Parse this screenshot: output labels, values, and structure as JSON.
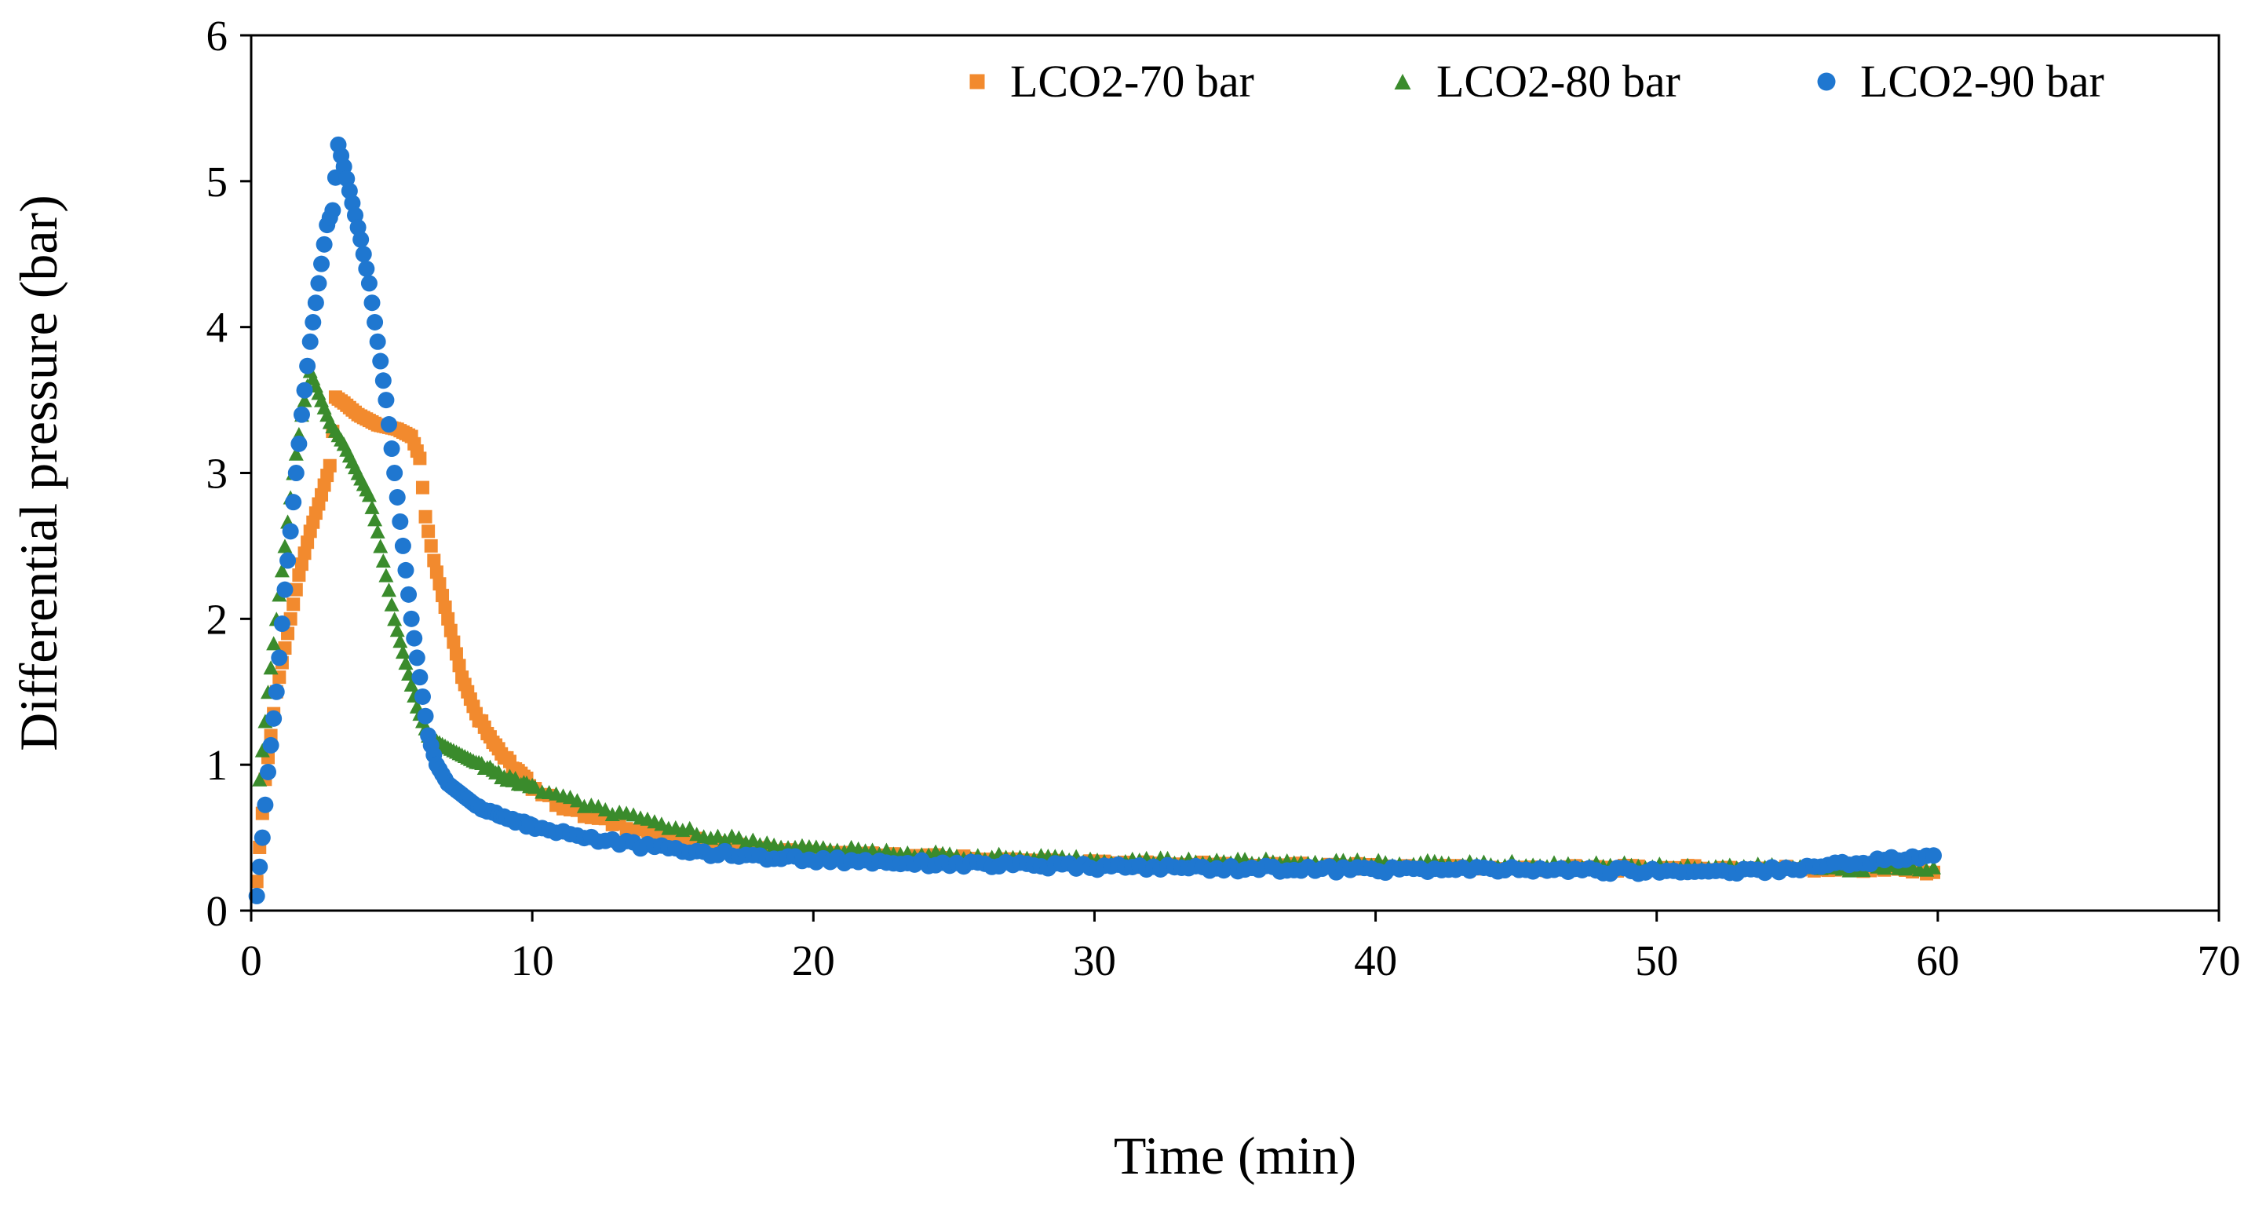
{
  "chart_data": {
    "type": "scatter",
    "title": "",
    "xlabel": "Time (min)",
    "ylabel": "Differential pressure (bar)",
    "xlim": [
      0,
      70
    ],
    "ylim": [
      0,
      6
    ],
    "x_ticks": [
      0,
      10,
      20,
      30,
      40,
      50,
      60,
      70
    ],
    "y_ticks": [
      0,
      1,
      2,
      3,
      4,
      5,
      6
    ],
    "grid": false,
    "legend_position": "top-right",
    "series": [
      {
        "name": "LCO2-70 bar",
        "color": "#F28A2E",
        "marker": "square",
        "anchors": [
          [
            0.2,
            0.2
          ],
          [
            0.5,
            0.9
          ],
          [
            0.9,
            1.5
          ],
          [
            1.3,
            1.9
          ],
          [
            1.7,
            2.3
          ],
          [
            2.1,
            2.6
          ],
          [
            2.5,
            2.85
          ],
          [
            2.8,
            3.05
          ],
          [
            3.0,
            3.52
          ],
          [
            3.3,
            3.48
          ],
          [
            3.8,
            3.4
          ],
          [
            4.5,
            3.33
          ],
          [
            5.2,
            3.3
          ],
          [
            5.7,
            3.25
          ],
          [
            6.0,
            3.1
          ],
          [
            6.2,
            2.7
          ],
          [
            6.5,
            2.4
          ],
          [
            7.0,
            2.0
          ],
          [
            7.5,
            1.6
          ],
          [
            8.0,
            1.35
          ],
          [
            9.0,
            1.05
          ],
          [
            10.0,
            0.85
          ],
          [
            11.0,
            0.72
          ],
          [
            12.0,
            0.64
          ],
          [
            14.0,
            0.55
          ],
          [
            16.0,
            0.47
          ],
          [
            18.0,
            0.42
          ],
          [
            20.0,
            0.39
          ],
          [
            25.0,
            0.36
          ],
          [
            30.0,
            0.32
          ],
          [
            35.0,
            0.31
          ],
          [
            40.0,
            0.3
          ],
          [
            45.0,
            0.29
          ],
          [
            50.0,
            0.29
          ],
          [
            55.0,
            0.29
          ],
          [
            60.0,
            0.27
          ]
        ]
      },
      {
        "name": "LCO2-80 bar",
        "color": "#3A8B2C",
        "marker": "triangle",
        "anchors": [
          [
            0.3,
            0.9
          ],
          [
            0.6,
            1.5
          ],
          [
            0.9,
            2.0
          ],
          [
            1.2,
            2.5
          ],
          [
            1.5,
            3.0
          ],
          [
            1.8,
            3.4
          ],
          [
            2.1,
            3.7
          ],
          [
            2.4,
            3.55
          ],
          [
            2.8,
            3.35
          ],
          [
            3.3,
            3.2
          ],
          [
            3.8,
            3.0
          ],
          [
            4.2,
            2.85
          ],
          [
            4.5,
            2.6
          ],
          [
            4.8,
            2.3
          ],
          [
            5.1,
            2.0
          ],
          [
            5.5,
            1.7
          ],
          [
            5.9,
            1.4
          ],
          [
            6.3,
            1.2
          ],
          [
            7.0,
            1.12
          ],
          [
            8.0,
            1.02
          ],
          [
            9.0,
            0.92
          ],
          [
            10.0,
            0.85
          ],
          [
            12.0,
            0.72
          ],
          [
            14.0,
            0.62
          ],
          [
            16.0,
            0.53
          ],
          [
            18.0,
            0.47
          ],
          [
            20.0,
            0.43
          ],
          [
            25.0,
            0.38
          ],
          [
            30.0,
            0.35
          ],
          [
            35.0,
            0.34
          ],
          [
            40.0,
            0.33
          ],
          [
            45.0,
            0.32
          ],
          [
            50.0,
            0.31
          ],
          [
            55.0,
            0.3
          ],
          [
            60.0,
            0.29
          ]
        ]
      },
      {
        "name": "LCO2-90 bar",
        "color": "#1F77D0",
        "marker": "circle",
        "anchors": [
          [
            0.2,
            0.1
          ],
          [
            0.4,
            0.5
          ],
          [
            0.6,
            0.95
          ],
          [
            0.9,
            1.5
          ],
          [
            1.2,
            2.2
          ],
          [
            1.5,
            2.8
          ],
          [
            1.8,
            3.4
          ],
          [
            2.1,
            3.9
          ],
          [
            2.4,
            4.3
          ],
          [
            2.7,
            4.7
          ],
          [
            2.9,
            4.8
          ],
          [
            3.1,
            5.25
          ],
          [
            3.3,
            5.1
          ],
          [
            3.6,
            4.85
          ],
          [
            3.9,
            4.6
          ],
          [
            4.2,
            4.3
          ],
          [
            4.5,
            3.9
          ],
          [
            4.8,
            3.5
          ],
          [
            5.1,
            3.0
          ],
          [
            5.4,
            2.5
          ],
          [
            5.7,
            2.0
          ],
          [
            6.0,
            1.6
          ],
          [
            6.3,
            1.2
          ],
          [
            6.6,
            1.0
          ],
          [
            7.0,
            0.87
          ],
          [
            8.0,
            0.72
          ],
          [
            9.0,
            0.64
          ],
          [
            10.0,
            0.58
          ],
          [
            12.0,
            0.5
          ],
          [
            14.0,
            0.44
          ],
          [
            16.0,
            0.4
          ],
          [
            18.0,
            0.37
          ],
          [
            20.0,
            0.35
          ],
          [
            25.0,
            0.32
          ],
          [
            30.0,
            0.3
          ],
          [
            35.0,
            0.29
          ],
          [
            40.0,
            0.28
          ],
          [
            45.0,
            0.28
          ],
          [
            50.0,
            0.27
          ],
          [
            53.0,
            0.27
          ],
          [
            55.0,
            0.29
          ],
          [
            57.0,
            0.33
          ],
          [
            59.0,
            0.36
          ],
          [
            60.0,
            0.37
          ]
        ]
      }
    ]
  }
}
